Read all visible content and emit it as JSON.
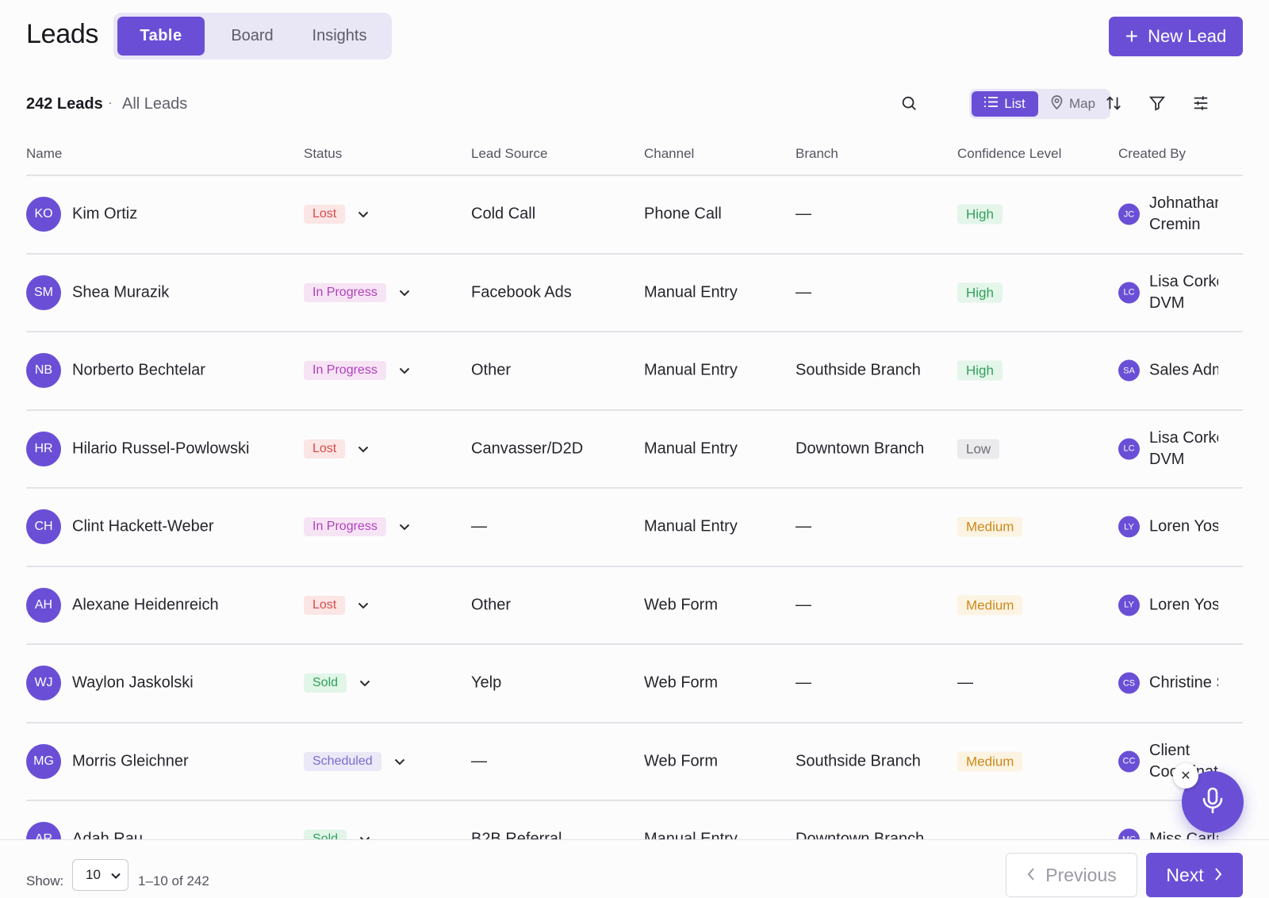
{
  "header": {
    "title": "Leads",
    "tabs": [
      {
        "label": "Table",
        "active": true
      },
      {
        "label": "Board",
        "active": false
      },
      {
        "label": "Insights",
        "active": false
      }
    ],
    "new_button": {
      "icon": "plus-icon",
      "label": "New Lead"
    }
  },
  "toolbar": {
    "count": "242 Leads",
    "separator": "·",
    "filter_name": "All Leads",
    "view_toggle": [
      {
        "icon": "list-icon",
        "label": "List",
        "active": true
      },
      {
        "icon": "map-pin-icon",
        "label": "Map",
        "active": false
      }
    ],
    "icons": [
      "search-icon",
      "sort-icon",
      "filter-icon",
      "columns-settings-icon"
    ]
  },
  "table": {
    "columns": [
      "Name",
      "Status",
      "Lead Source",
      "Channel",
      "Branch",
      "Confidence Level",
      "Created By"
    ],
    "rows": [
      {
        "initials": "KO",
        "name": "Kim Ortiz",
        "status": "Lost",
        "status_kind": "lost",
        "source": "Cold Call",
        "channel": "Phone Call",
        "branch": "—",
        "confidence": "High",
        "confidence_kind": "high",
        "creator_initials": "JC",
        "creator": "Johnathan Cremin",
        "creator_two_lines": true
      },
      {
        "initials": "SM",
        "name": "Shea Murazik",
        "status": "In Progress",
        "status_kind": "prog",
        "source": "Facebook Ads",
        "channel": "Manual Entry",
        "branch": "—",
        "confidence": "High",
        "confidence_kind": "high",
        "creator_initials": "LC",
        "creator": "Lisa Corkery DVM",
        "creator_two_lines": true
      },
      {
        "initials": "NB",
        "name": "Norberto Bechtelar",
        "status": "In Progress",
        "status_kind": "prog",
        "source": "Other",
        "channel": "Manual Entry",
        "branch": "Southside Branch",
        "confidence": "High",
        "confidence_kind": "high",
        "creator_initials": "SA",
        "creator": "Sales Admin",
        "creator_two_lines": false
      },
      {
        "initials": "HR",
        "name": "Hilario Russel-Powlowski",
        "status": "Lost",
        "status_kind": "lost",
        "source": "Canvasser/D2D",
        "channel": "Manual Entry",
        "branch": "Downtown Branch",
        "confidence": "Low",
        "confidence_kind": "low",
        "creator_initials": "LC",
        "creator": "Lisa Corkery DVM",
        "creator_two_lines": true
      },
      {
        "initials": "CH",
        "name": "Clint Hackett-Weber",
        "status": "In Progress",
        "status_kind": "prog",
        "source": "—",
        "channel": "Manual Entry",
        "branch": "—",
        "confidence": "Medium",
        "confidence_kind": "med",
        "creator_initials": "LY",
        "creator": "Loren Yost",
        "creator_two_lines": false
      },
      {
        "initials": "AH",
        "name": "Alexane Heidenreich",
        "status": "Lost",
        "status_kind": "lost",
        "source": "Other",
        "channel": "Web Form",
        "branch": "—",
        "confidence": "Medium",
        "confidence_kind": "med",
        "creator_initials": "LY",
        "creator": "Loren Yost",
        "creator_two_lines": false
      },
      {
        "initials": "WJ",
        "name": "Waylon Jaskolski",
        "status": "Sold",
        "status_kind": "sold",
        "source": "Yelp",
        "channel": "Web Form",
        "branch": "—",
        "confidence": "—",
        "confidence_kind": "none",
        "creator_initials": "CS",
        "creator": "Christine S",
        "creator_two_lines": false
      },
      {
        "initials": "MG",
        "name": "Morris Gleichner",
        "status": "Scheduled",
        "status_kind": "sched",
        "source": "—",
        "channel": "Web Form",
        "branch": "Southside Branch",
        "confidence": "Medium",
        "confidence_kind": "med",
        "creator_initials": "CC",
        "creator": "Client Coordinator",
        "creator_two_lines": true
      },
      {
        "initials": "AR",
        "name": "Adah Rau",
        "status": "Sold",
        "status_kind": "sold",
        "source": "B2B Referral",
        "channel": "Manual Entry",
        "branch": "Downtown Branch",
        "confidence": "",
        "confidence_kind": "none",
        "creator_initials": "MC",
        "creator": "Miss Carla",
        "creator_two_lines": false
      }
    ]
  },
  "footer": {
    "show_label": "Show:",
    "page_size": "10",
    "range": "1–10 of 242",
    "previous_label": "Previous",
    "next_label": "Next"
  },
  "colors": {
    "accent": "#6a4fd6",
    "lost": "#d94b4b",
    "in_progress": "#b13fbf",
    "sold": "#2fa15a",
    "scheduled": "#7a6bd0",
    "medium": "#c98a1c"
  }
}
